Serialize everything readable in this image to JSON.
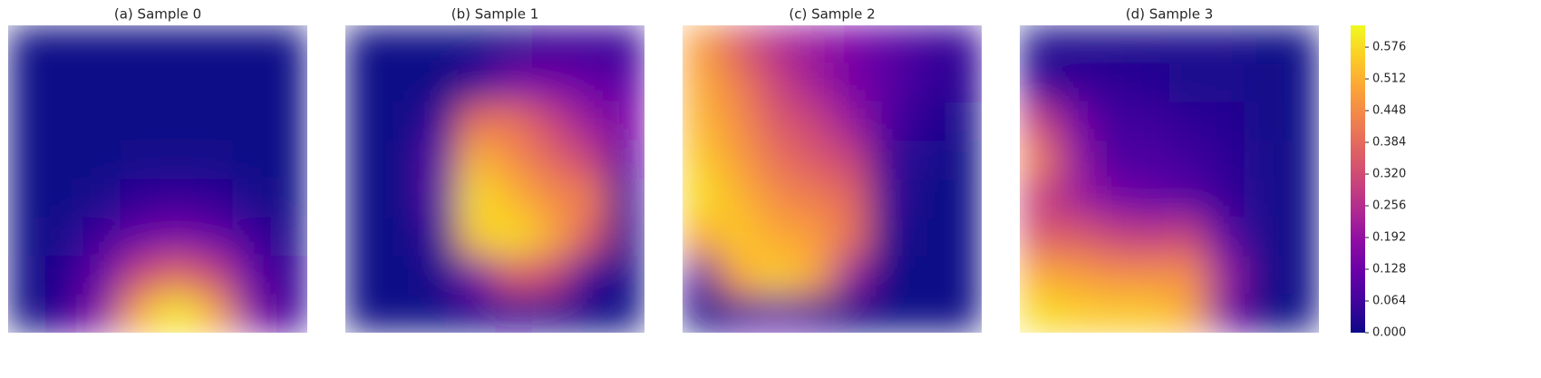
{
  "chart_data": [
    {
      "type": "heatmap",
      "title": "(a) Sample 0",
      "colorscale": "plasma",
      "clim": [
        0,
        0.62
      ],
      "z": [
        [
          0,
          0,
          0,
          0,
          0,
          0,
          0,
          0
        ],
        [
          0,
          0,
          0,
          0,
          0,
          0,
          0,
          0
        ],
        [
          0,
          0,
          0,
          0,
          0,
          0,
          0,
          0
        ],
        [
          0,
          0,
          0,
          0.01,
          0.01,
          0.01,
          0,
          0
        ],
        [
          0,
          0,
          0.02,
          0.04,
          0.05,
          0.04,
          0.02,
          0
        ],
        [
          0,
          0.02,
          0.06,
          0.12,
          0.15,
          0.12,
          0.06,
          0.02
        ],
        [
          0,
          0.03,
          0.12,
          0.3,
          0.38,
          0.3,
          0.12,
          0.03
        ],
        [
          0,
          0.04,
          0.18,
          0.5,
          0.6,
          0.5,
          0.18,
          0.04
        ]
      ]
    },
    {
      "type": "heatmap",
      "title": "(b) Sample 1",
      "colorscale": "plasma",
      "clim": [
        0,
        0.62
      ],
      "z": [
        [
          0,
          0,
          0,
          0,
          0.02,
          0.04,
          0.05,
          0.04
        ],
        [
          0,
          0,
          0,
          0.05,
          0.15,
          0.15,
          0.12,
          0.1
        ],
        [
          0,
          0,
          0.05,
          0.4,
          0.4,
          0.3,
          0.2,
          0.15
        ],
        [
          0,
          0,
          0.1,
          0.52,
          0.45,
          0.38,
          0.3,
          0.1
        ],
        [
          0,
          0,
          0.1,
          0.58,
          0.52,
          0.45,
          0.42,
          0.05
        ],
        [
          0,
          0,
          0.05,
          0.55,
          0.58,
          0.5,
          0.35,
          0.02
        ],
        [
          0,
          0,
          0.02,
          0.15,
          0.35,
          0.3,
          0.05,
          0
        ],
        [
          0,
          0,
          0,
          0.02,
          0.03,
          0.02,
          0,
          0
        ]
      ]
    },
    {
      "type": "heatmap",
      "title": "(c) Sample 2",
      "colorscale": "plasma",
      "clim": [
        0,
        0.62
      ],
      "z": [
        [
          0.48,
          0.35,
          0.25,
          0.2,
          0.15,
          0.1,
          0.06,
          0.04
        ],
        [
          0.5,
          0.42,
          0.3,
          0.22,
          0.15,
          0.1,
          0.05,
          0.03
        ],
        [
          0.52,
          0.45,
          0.35,
          0.3,
          0.2,
          0.08,
          0.03,
          0.02
        ],
        [
          0.55,
          0.48,
          0.4,
          0.35,
          0.3,
          0.05,
          0.02,
          0
        ],
        [
          0.58,
          0.52,
          0.45,
          0.42,
          0.38,
          0.05,
          0,
          0
        ],
        [
          0.5,
          0.55,
          0.5,
          0.48,
          0.4,
          0.03,
          0,
          0
        ],
        [
          0.1,
          0.5,
          0.56,
          0.5,
          0.2,
          0,
          0,
          0
        ],
        [
          0,
          0.05,
          0.1,
          0.05,
          0,
          0,
          0,
          0
        ]
      ]
    },
    {
      "type": "heatmap",
      "title": "(d) Sample 3",
      "colorscale": "plasma",
      "clim": [
        0,
        0.62
      ],
      "z": [
        [
          0.02,
          0.02,
          0.02,
          0.02,
          0.02,
          0.02,
          0,
          0
        ],
        [
          0.05,
          0.05,
          0.04,
          0.03,
          0.02,
          0.02,
          0.01,
          0
        ],
        [
          0.3,
          0.15,
          0.06,
          0.06,
          0.04,
          0.03,
          0.01,
          0
        ],
        [
          0.42,
          0.2,
          0.08,
          0.08,
          0.06,
          0.04,
          0.02,
          0
        ],
        [
          0.3,
          0.22,
          0.15,
          0.12,
          0.1,
          0.05,
          0.02,
          0
        ],
        [
          0.35,
          0.35,
          0.3,
          0.28,
          0.3,
          0.1,
          0.02,
          0
        ],
        [
          0.5,
          0.48,
          0.45,
          0.45,
          0.45,
          0.2,
          0.02,
          0
        ],
        [
          0.58,
          0.56,
          0.55,
          0.55,
          0.5,
          0.15,
          0,
          0
        ]
      ]
    },
    {
      "type": "colorbar",
      "colorscale": "plasma",
      "ylim": [
        0,
        0.62
      ],
      "yticks": [
        {
          "value": 0,
          "label": "0.000"
        },
        {
          "value": 0.064,
          "label": "0.064"
        },
        {
          "value": 0.128,
          "label": "0.128"
        },
        {
          "value": 0.192,
          "label": "0.192"
        },
        {
          "value": 0.256,
          "label": "0.256"
        },
        {
          "value": 0.32,
          "label": "0.320"
        },
        {
          "value": 0.384,
          "label": "0.384"
        },
        {
          "value": 0.448,
          "label": "0.448"
        },
        {
          "value": 0.512,
          "label": "0.512"
        },
        {
          "value": 0.576,
          "label": "0.576"
        }
      ]
    }
  ]
}
